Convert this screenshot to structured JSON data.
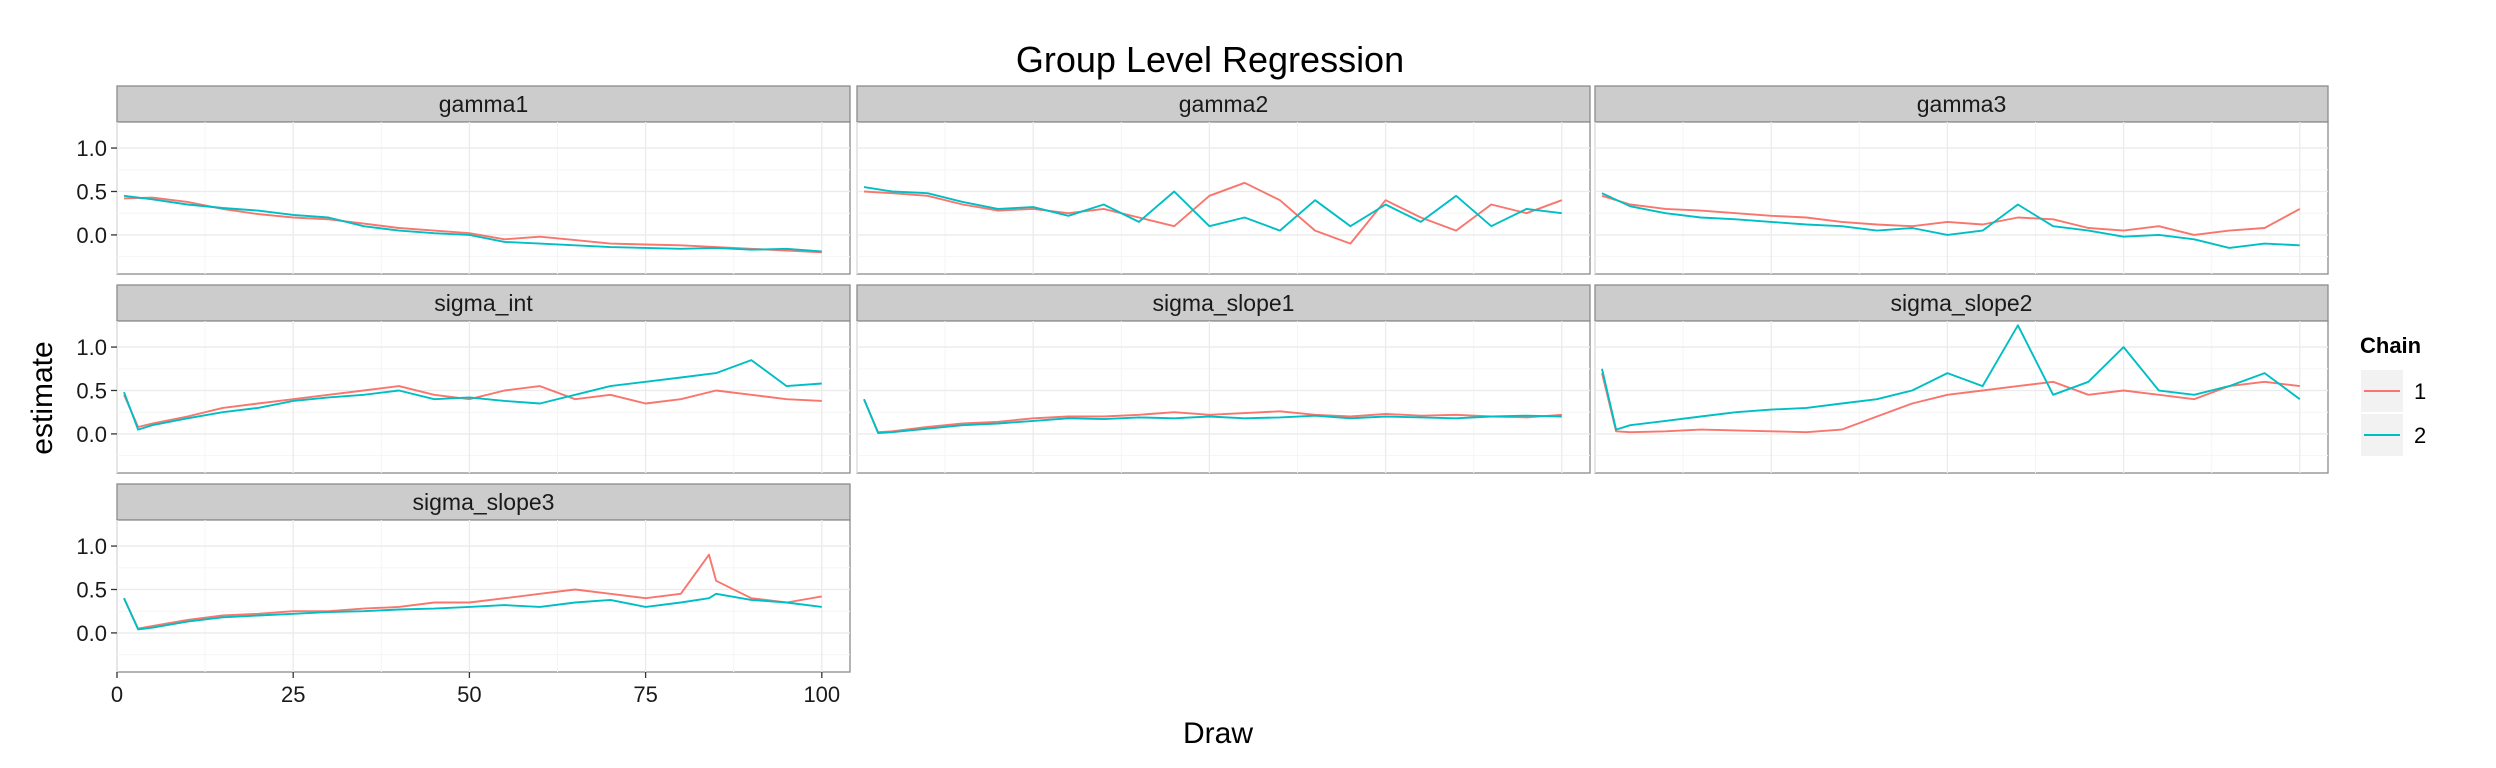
{
  "chart_data": {
    "type": "line",
    "title": "Group Level Regression",
    "xlabel": "Draw",
    "ylabel": "estimate",
    "xlim": [
      0,
      104
    ],
    "ylim": [
      -0.45,
      1.3
    ],
    "x_ticks": [
      0,
      25,
      50,
      75,
      100
    ],
    "y_ticks": [
      0.0,
      0.5,
      1.0
    ],
    "y_tick_labels": [
      "0.0",
      "0.5",
      "1.0"
    ],
    "grid": true,
    "legend": {
      "title": "Chain",
      "position": "right",
      "entries": [
        "1",
        "2"
      ]
    },
    "colors": {
      "1": "#f8766d",
      "2": "#00bfc4"
    },
    "facets": [
      {
        "name": "gamma1",
        "series": [
          {
            "name": "1",
            "x": [
              1,
              5,
              10,
              15,
              20,
              25,
              30,
              35,
              40,
              45,
              50,
              55,
              60,
              65,
              70,
              75,
              80,
              85,
              90,
              95,
              100
            ],
            "values": [
              0.42,
              0.43,
              0.38,
              0.3,
              0.24,
              0.2,
              0.18,
              0.13,
              0.08,
              0.05,
              0.02,
              -0.05,
              -0.02,
              -0.06,
              -0.1,
              -0.11,
              -0.12,
              -0.14,
              -0.16,
              -0.18,
              -0.2
            ]
          },
          {
            "name": "2",
            "x": [
              1,
              5,
              10,
              15,
              20,
              25,
              30,
              35,
              40,
              45,
              50,
              55,
              60,
              65,
              70,
              75,
              80,
              85,
              90,
              95,
              100
            ],
            "values": [
              0.45,
              0.41,
              0.35,
              0.31,
              0.28,
              0.23,
              0.2,
              0.1,
              0.05,
              0.02,
              0.0,
              -0.08,
              -0.1,
              -0.12,
              -0.14,
              -0.15,
              -0.16,
              -0.15,
              -0.17,
              -0.16,
              -0.19
            ]
          }
        ]
      },
      {
        "name": "gamma2",
        "series": [
          {
            "name": "1",
            "x": [
              1,
              5,
              10,
              15,
              20,
              25,
              30,
              35,
              40,
              45,
              50,
              55,
              60,
              65,
              70,
              75,
              80,
              85,
              90,
              95,
              100
            ],
            "values": [
              0.5,
              0.48,
              0.45,
              0.35,
              0.28,
              0.3,
              0.25,
              0.3,
              0.2,
              0.1,
              0.45,
              0.6,
              0.4,
              0.05,
              -0.1,
              0.4,
              0.2,
              0.05,
              0.35,
              0.25,
              0.4
            ]
          },
          {
            "name": "2",
            "x": [
              1,
              5,
              10,
              15,
              20,
              25,
              30,
              35,
              40,
              45,
              50,
              55,
              60,
              65,
              70,
              75,
              80,
              85,
              90,
              95,
              100
            ],
            "values": [
              0.55,
              0.5,
              0.48,
              0.38,
              0.3,
              0.32,
              0.22,
              0.35,
              0.15,
              0.5,
              0.1,
              0.2,
              0.05,
              0.4,
              0.1,
              0.35,
              0.15,
              0.45,
              0.1,
              0.3,
              0.25
            ]
          }
        ]
      },
      {
        "name": "gamma3",
        "series": [
          {
            "name": "1",
            "x": [
              1,
              5,
              10,
              15,
              20,
              25,
              30,
              35,
              40,
              45,
              50,
              55,
              60,
              65,
              70,
              75,
              80,
              85,
              90,
              95,
              100
            ],
            "values": [
              0.45,
              0.35,
              0.3,
              0.28,
              0.25,
              0.22,
              0.2,
              0.15,
              0.12,
              0.1,
              0.15,
              0.12,
              0.2,
              0.18,
              0.08,
              0.05,
              0.1,
              0.0,
              0.05,
              0.08,
              0.3
            ]
          },
          {
            "name": "2",
            "x": [
              1,
              5,
              10,
              15,
              20,
              25,
              30,
              35,
              40,
              45,
              50,
              55,
              60,
              65,
              70,
              75,
              80,
              85,
              90,
              95,
              100
            ],
            "values": [
              0.48,
              0.33,
              0.25,
              0.2,
              0.18,
              0.15,
              0.12,
              0.1,
              0.05,
              0.08,
              0.0,
              0.05,
              0.35,
              0.1,
              0.05,
              -0.02,
              0.0,
              -0.05,
              -0.15,
              -0.1,
              -0.12
            ]
          }
        ]
      },
      {
        "name": "sigma_int",
        "series": [
          {
            "name": "1",
            "x": [
              1,
              3,
              5,
              10,
              15,
              20,
              25,
              30,
              35,
              40,
              45,
              50,
              55,
              60,
              65,
              70,
              75,
              80,
              85,
              90,
              95,
              100
            ],
            "values": [
              0.45,
              0.08,
              0.12,
              0.2,
              0.3,
              0.35,
              0.4,
              0.45,
              0.5,
              0.55,
              0.45,
              0.4,
              0.5,
              0.55,
              0.4,
              0.45,
              0.35,
              0.4,
              0.5,
              0.45,
              0.4,
              0.38
            ]
          },
          {
            "name": "2",
            "x": [
              1,
              3,
              5,
              10,
              15,
              20,
              25,
              30,
              35,
              40,
              45,
              50,
              55,
              60,
              65,
              70,
              75,
              80,
              85,
              90,
              95,
              100
            ],
            "values": [
              0.48,
              0.05,
              0.1,
              0.18,
              0.25,
              0.3,
              0.38,
              0.42,
              0.45,
              0.5,
              0.4,
              0.42,
              0.38,
              0.35,
              0.45,
              0.55,
              0.6,
              0.65,
              0.7,
              0.85,
              0.55,
              0.58
            ]
          }
        ]
      },
      {
        "name": "sigma_slope1",
        "series": [
          {
            "name": "1",
            "x": [
              1,
              3,
              5,
              10,
              15,
              20,
              25,
              30,
              35,
              40,
              45,
              50,
              55,
              60,
              65,
              70,
              75,
              80,
              85,
              90,
              95,
              100
            ],
            "values": [
              0.4,
              0.02,
              0.03,
              0.08,
              0.12,
              0.14,
              0.18,
              0.2,
              0.2,
              0.22,
              0.25,
              0.22,
              0.24,
              0.26,
              0.22,
              0.2,
              0.23,
              0.21,
              0.22,
              0.2,
              0.19,
              0.22
            ]
          },
          {
            "name": "2",
            "x": [
              1,
              3,
              5,
              10,
              15,
              20,
              25,
              30,
              35,
              40,
              45,
              50,
              55,
              60,
              65,
              70,
              75,
              80,
              85,
              90,
              95,
              100
            ],
            "values": [
              0.4,
              0.01,
              0.02,
              0.06,
              0.1,
              0.12,
              0.15,
              0.18,
              0.17,
              0.19,
              0.18,
              0.2,
              0.18,
              0.19,
              0.21,
              0.18,
              0.2,
              0.19,
              0.18,
              0.2,
              0.21,
              0.2
            ]
          }
        ]
      },
      {
        "name": "sigma_slope2",
        "series": [
          {
            "name": "1",
            "x": [
              1,
              3,
              5,
              10,
              15,
              20,
              25,
              30,
              35,
              40,
              45,
              50,
              55,
              60,
              65,
              70,
              75,
              80,
              85,
              90,
              95,
              100
            ],
            "values": [
              0.7,
              0.03,
              0.02,
              0.03,
              0.05,
              0.04,
              0.03,
              0.02,
              0.05,
              0.2,
              0.35,
              0.45,
              0.5,
              0.55,
              0.6,
              0.45,
              0.5,
              0.45,
              0.4,
              0.55,
              0.6,
              0.55
            ]
          },
          {
            "name": "2",
            "x": [
              1,
              3,
              5,
              10,
              15,
              20,
              25,
              30,
              35,
              40,
              45,
              50,
              55,
              60,
              65,
              70,
              75,
              80,
              85,
              90,
              95,
              100
            ],
            "values": [
              0.75,
              0.05,
              0.1,
              0.15,
              0.2,
              0.25,
              0.28,
              0.3,
              0.35,
              0.4,
              0.5,
              0.7,
              0.55,
              1.25,
              0.45,
              0.6,
              1.0,
              0.5,
              0.45,
              0.55,
              0.7,
              0.4
            ]
          }
        ]
      },
      {
        "name": "sigma_slope3",
        "series": [
          {
            "name": "1",
            "x": [
              1,
              3,
              5,
              10,
              15,
              20,
              25,
              30,
              35,
              40,
              45,
              50,
              55,
              60,
              65,
              70,
              75,
              80,
              84,
              85,
              90,
              95,
              100
            ],
            "values": [
              0.4,
              0.05,
              0.08,
              0.15,
              0.2,
              0.22,
              0.25,
              0.25,
              0.28,
              0.3,
              0.35,
              0.35,
              0.4,
              0.45,
              0.5,
              0.45,
              0.4,
              0.45,
              0.9,
              0.6,
              0.4,
              0.35,
              0.42
            ]
          },
          {
            "name": "2",
            "x": [
              1,
              3,
              5,
              10,
              15,
              20,
              25,
              30,
              35,
              40,
              45,
              50,
              55,
              60,
              65,
              70,
              75,
              80,
              84,
              85,
              90,
              95,
              100
            ],
            "values": [
              0.4,
              0.04,
              0.06,
              0.13,
              0.18,
              0.2,
              0.22,
              0.24,
              0.25,
              0.27,
              0.28,
              0.3,
              0.32,
              0.3,
              0.35,
              0.38,
              0.3,
              0.35,
              0.4,
              0.45,
              0.38,
              0.35,
              0.3
            ]
          }
        ]
      }
    ]
  }
}
